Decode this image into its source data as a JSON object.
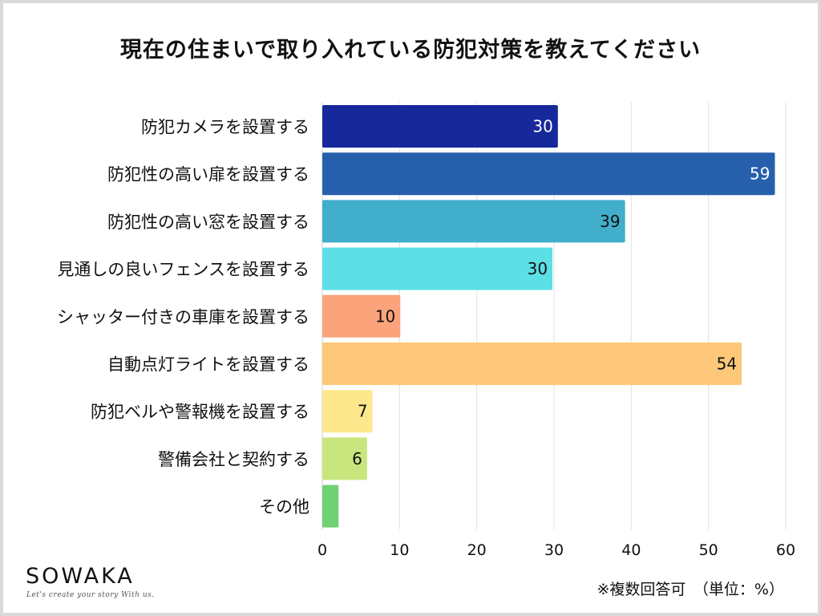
{
  "title": "現在の住まいで取り入れている防犯対策を教えてください",
  "brand": {
    "name": "SOWAKA",
    "tagline": "Let's create your story With us."
  },
  "footnote": "※複数回答可　（単位：%）",
  "chart_data": {
    "type": "bar",
    "orientation": "horizontal",
    "categories": [
      "防犯カメラを設置する",
      "防犯性の高い扉を設置する",
      "防犯性の高い窓を設置する",
      "見通しの良いフェンスを設置する",
      "シャッター付きの車庫を設置する",
      "自動点灯ライトを設置する",
      "防犯ベルや警報機を設置する",
      "警備会社と契約する",
      "その他"
    ],
    "values": [
      30.5,
      58.6,
      39.2,
      29.8,
      10.1,
      54.3,
      6.5,
      5.8,
      2.1
    ],
    "data_labels": [
      "30",
      "59",
      "39",
      "30",
      "10",
      "54",
      "7",
      "6",
      ""
    ],
    "colors": [
      "#16289a",
      "#2660ad",
      "#41aecb",
      "#5ce0e6",
      "#fba37b",
      "#fdc87a",
      "#fde88e",
      "#c9e67e",
      "#6fd074"
    ],
    "label_colors": [
      "#ffffff",
      "#ffffff",
      "#111111",
      "#111111",
      "#111111",
      "#111111",
      "#111111",
      "#111111",
      "#111111"
    ],
    "xlim": [
      0,
      60
    ],
    "xticks": [
      0,
      10,
      20,
      30,
      40,
      50,
      60
    ],
    "grid": true,
    "xlabel": "",
    "ylabel": ""
  }
}
